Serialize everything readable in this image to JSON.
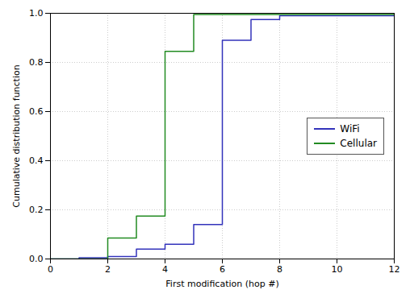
{
  "chart_data": {
    "type": "line",
    "xlabel": "First modification (hop #)",
    "ylabel": "Cumulative distribution function",
    "series": [
      {
        "name": "WiFi",
        "color": "#3333bb",
        "x": [
          0,
          1,
          1,
          2,
          2,
          3,
          3,
          4,
          4,
          5,
          5,
          6,
          6,
          7,
          7,
          8,
          8,
          12
        ],
        "values": [
          0,
          0,
          0.005,
          0.005,
          0.01,
          0.01,
          0.04,
          0.04,
          0.06,
          0.06,
          0.14,
          0.14,
          0.89,
          0.89,
          0.975,
          0.975,
          0.99,
          0.99
        ]
      },
      {
        "name": "Cellular",
        "color": "#228B22",
        "x": [
          0,
          2,
          2,
          3,
          3,
          4,
          4,
          5,
          5,
          12
        ],
        "values": [
          0,
          0,
          0.085,
          0.085,
          0.175,
          0.175,
          0.845,
          0.845,
          0.995,
          0.995
        ]
      }
    ],
    "xlim": [
      0,
      12
    ],
    "ylim": [
      0,
      1.0
    ],
    "xticks": [
      0,
      2,
      4,
      6,
      8,
      10,
      12
    ],
    "yticks": [
      {
        "value": 0,
        "label": "0.0"
      },
      {
        "value": 0.2,
        "label": "0.2"
      },
      {
        "value": 0.4,
        "label": "0.4"
      },
      {
        "value": 0.6,
        "label": "0.6"
      },
      {
        "value": 0.8,
        "label": "0.8"
      },
      {
        "value": 1.0,
        "label": "1.0"
      }
    ],
    "grid": true,
    "legend": "center right"
  }
}
